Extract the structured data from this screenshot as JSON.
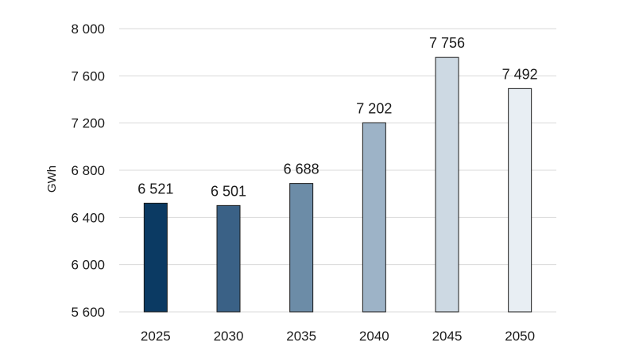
{
  "chart_data": {
    "type": "bar",
    "categories": [
      "2025",
      "2030",
      "2035",
      "2040",
      "2045",
      "2050"
    ],
    "values": [
      6521,
      6501,
      6688,
      7202,
      7756,
      7492
    ],
    "data_labels": [
      "6 521",
      "6 501",
      "6 688",
      "7 202",
      "7 756",
      "7 492"
    ],
    "bar_colors": [
      "#0b3a63",
      "#3a6186",
      "#6c8ca7",
      "#9db3c7",
      "#cdd9e3",
      "#e8eef3"
    ],
    "ylabel": "GWh",
    "xlabel": "",
    "ylim": [
      5600,
      8000
    ],
    "yticks": [
      5600,
      6000,
      6400,
      6800,
      7200,
      7600,
      8000
    ],
    "ytick_labels": [
      "5 600",
      "6 000",
      "6 400",
      "6 800",
      "7 200",
      "7 600",
      "8 000"
    ],
    "grid": true,
    "legend": "none"
  }
}
